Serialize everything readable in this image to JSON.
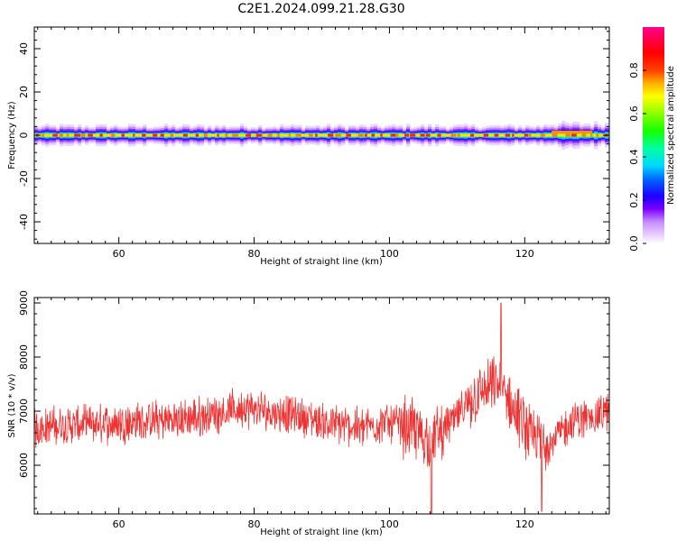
{
  "title": "C2E1.2024.099.21.28.G30",
  "chart_data": [
    {
      "type": "heatmap",
      "xlabel": "Height of straight line (km)",
      "ylabel": "Frequency (Hz)",
      "xlim": [
        47.5,
        132.5
      ],
      "ylim": [
        -50,
        50
      ],
      "x_ticks": [
        60,
        80,
        100,
        120
      ],
      "y_ticks": [
        -40,
        -20,
        0,
        20,
        40
      ],
      "signal_band": {
        "frequency_hz": 0,
        "approx_halfwidth_hz": 3
      },
      "colorbar": {
        "label": "Normalized spectral amplitude",
        "range": [
          0.0,
          1.0
        ],
        "ticks": [
          0.0,
          0.2,
          0.4,
          0.6,
          0.8
        ],
        "colormap": "hsv-like (purple/white → blue → cyan → green → yellow → red → magenta)"
      }
    },
    {
      "type": "line",
      "xlabel": "Height of straight line (km)",
      "ylabel": "SNR (10 * v/v)",
      "xlim": [
        47.5,
        132.5
      ],
      "ylim": [
        5100,
        9100
      ],
      "x_ticks": [
        60,
        80,
        100,
        120
      ],
      "y_ticks": [
        6000,
        7000,
        8000,
        9000
      ],
      "line_color": "#ee3333",
      "series_trend": {
        "x": [
          47.5,
          55,
          62,
          70,
          78,
          85,
          92,
          96,
          100,
          103,
          106,
          110,
          113,
          116,
          119,
          121,
          124,
          127,
          130,
          132.5
        ],
        "y": [
          6700,
          6750,
          6800,
          6850,
          7050,
          6950,
          6750,
          6700,
          6800,
          6700,
          6450,
          6900,
          7300,
          7500,
          6900,
          6500,
          6450,
          6800,
          6900,
          7000
        ]
      },
      "noise_amplitude": 300,
      "notable_extremes": [
        {
          "x": 116.5,
          "y": 9000
        },
        {
          "x": 106.2,
          "y": 5050
        },
        {
          "x": 122.5,
          "y": 5150
        }
      ]
    }
  ]
}
